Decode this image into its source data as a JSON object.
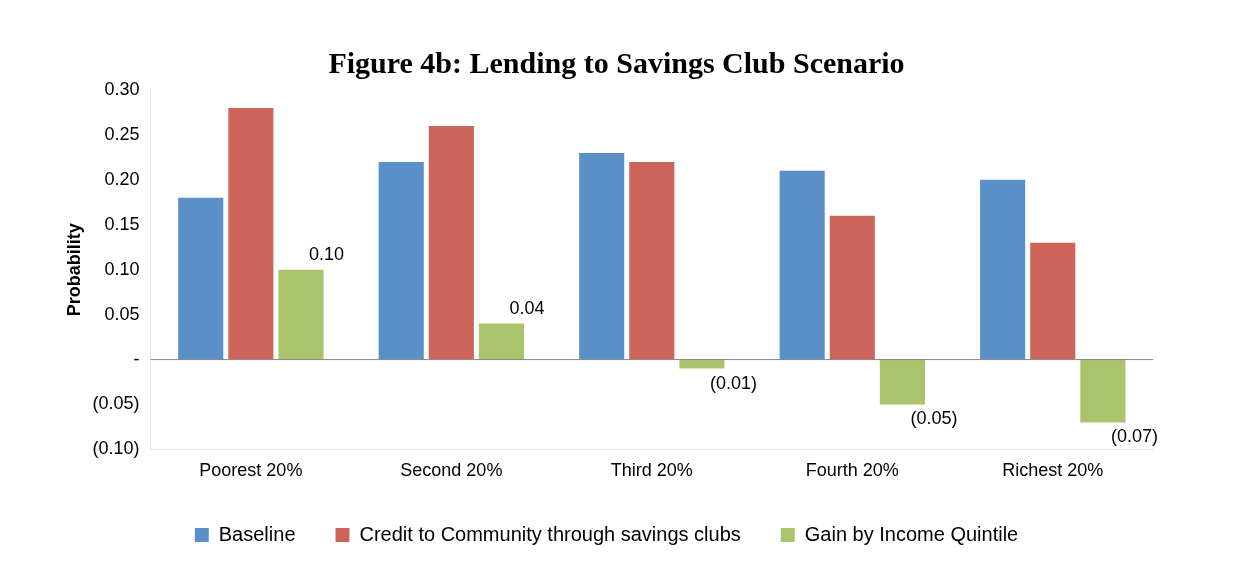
{
  "chart_data": {
    "type": "bar",
    "title": "Figure 4b: Lending to Savings Club Scenario",
    "ylabel": "Probability",
    "categories": [
      "Poorest 20%",
      "Second 20%",
      "Third 20%",
      "Fourth 20%",
      "Richest 20%"
    ],
    "series": [
      {
        "name": "Baseline",
        "color": "#5a8fc8",
        "values": [
          0.18,
          0.22,
          0.23,
          0.21,
          0.2
        ]
      },
      {
        "name": "Credit to Community through savings clubs",
        "color": "#cd6459",
        "values": [
          0.28,
          0.26,
          0.22,
          0.16,
          0.13
        ]
      },
      {
        "name": "Gain by Income Quintile",
        "color": "#a9c46c",
        "values": [
          0.1,
          0.04,
          -0.01,
          -0.05,
          -0.07
        ],
        "value_labels": [
          "0.10",
          "0.04",
          "(0.01)",
          "(0.05)",
          "(0.07)"
        ]
      }
    ],
    "ylim": [
      -0.1,
      0.3
    ],
    "yticks": [
      {
        "value": -0.1,
        "label": "(0.10)"
      },
      {
        "value": -0.05,
        "label": "(0.05)"
      },
      {
        "value": 0,
        "label": "-"
      },
      {
        "value": 0.05,
        "label": "0.05"
      },
      {
        "value": 0.1,
        "label": "0.10"
      },
      {
        "value": 0.15,
        "label": "0.15"
      },
      {
        "value": 0.2,
        "label": "0.20"
      },
      {
        "value": 0.25,
        "label": "0.25"
      },
      {
        "value": 0.3,
        "label": "0.30"
      }
    ],
    "ref_lines": [
      {
        "axis": "y",
        "value": 0,
        "color": "#888888"
      }
    ],
    "grid": false,
    "legend": "bottom"
  }
}
